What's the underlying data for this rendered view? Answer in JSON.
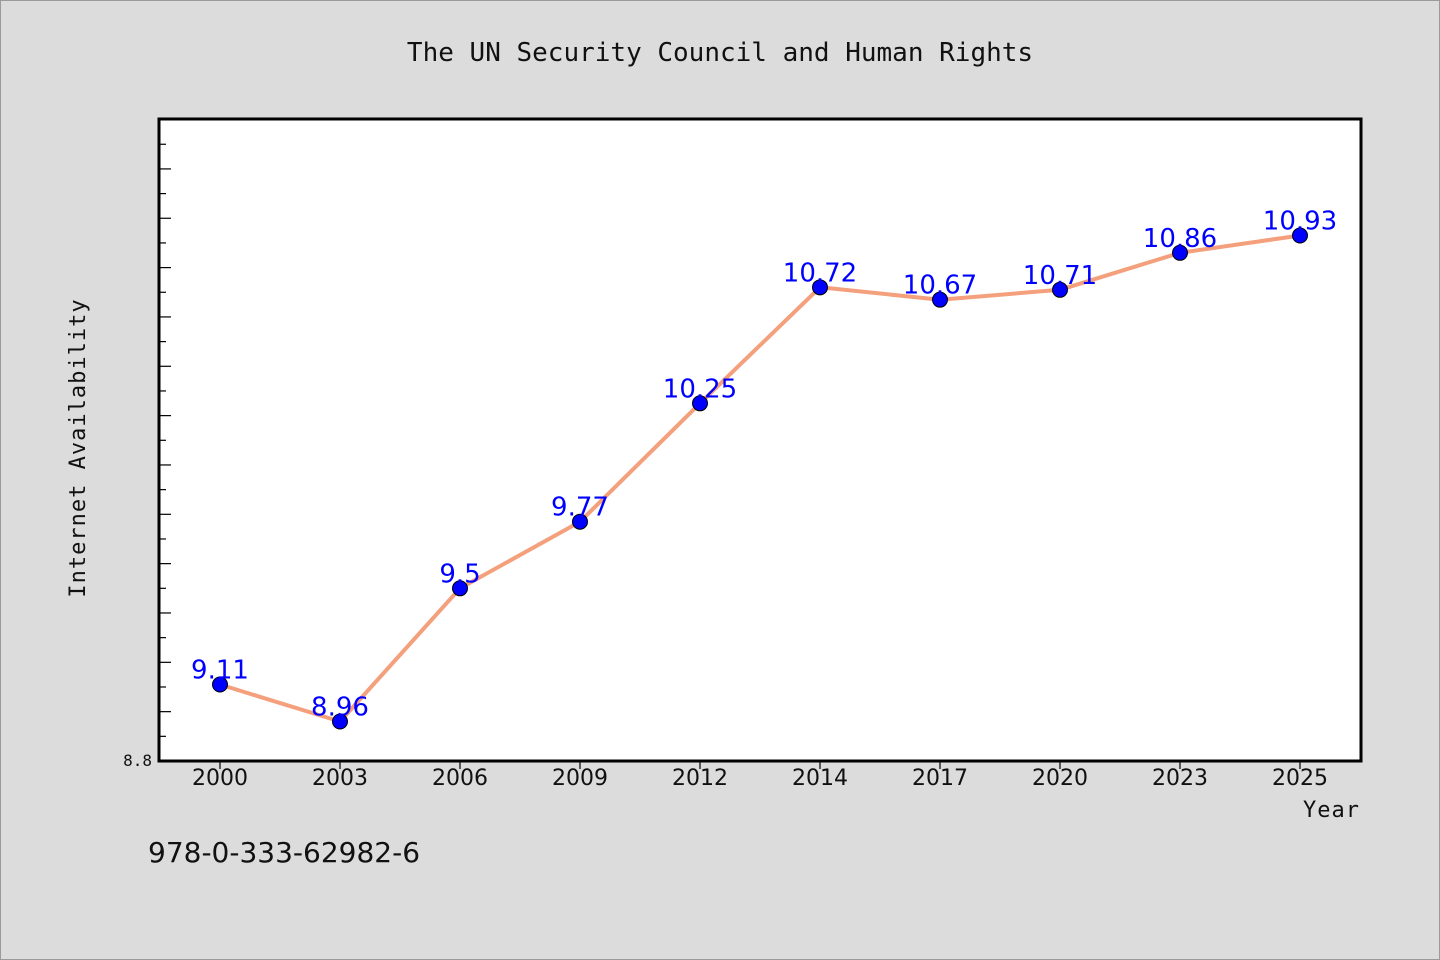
{
  "chart_data": {
    "type": "line",
    "title": "The UN Security Council and Human Rights",
    "xlabel": "Year",
    "ylabel": "Internet Availability",
    "categories": [
      "2000",
      "2003",
      "2006",
      "2009",
      "2012",
      "2014",
      "2017",
      "2020",
      "2023",
      "2025"
    ],
    "series": [
      {
        "values": [
          9.11,
          8.96,
          9.5,
          9.77,
          10.25,
          10.72,
          10.67,
          10.71,
          10.86,
          10.93
        ],
        "labels": [
          "9.11",
          "8.96",
          "9.5",
          "9.77",
          "10.25",
          "10.72",
          "10.67",
          "10.71",
          "10.86",
          "10.93"
        ],
        "line_color": "#f4a07c",
        "marker_color": "#0000ff"
      }
    ],
    "ylim": [
      8.8,
      11.4
    ],
    "yticks_labeled": [
      "8.8"
    ],
    "grid": false,
    "legend": "none",
    "footer_text": "978-0-333-62982-6"
  }
}
